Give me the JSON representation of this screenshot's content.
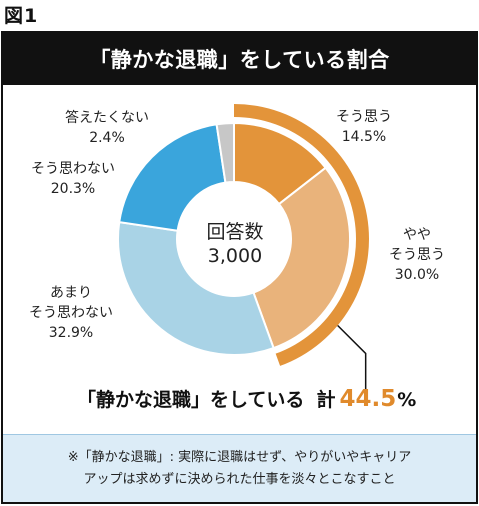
{
  "figure_label": "図1",
  "chart_data": {
    "type": "pie",
    "variant": "donut",
    "title": "「静かな退職」をしている割合",
    "center_label": {
      "caption": "回答数",
      "value": "3,000"
    },
    "categories": [
      "そう思う",
      "ややそう思う",
      "あまりそう思わない",
      "そう思わない",
      "答えたくない"
    ],
    "values": [
      14.5,
      30.0,
      32.9,
      20.3,
      2.4
    ],
    "unit": "%",
    "colors": [
      "#e3943a",
      "#e9b37b",
      "#a9d3e6",
      "#3aa5dc",
      "#c7c7c7"
    ],
    "highlight": {
      "categories": [
        "そう思う",
        "ややそう思う"
      ],
      "color": "#e3943a"
    },
    "labels": [
      {
        "lines": [
          "そう思う"
        ],
        "value": "14.5%"
      },
      {
        "lines": [
          "やや",
          "そう思う"
        ],
        "value": "30.0%"
      },
      {
        "lines": [
          "あまり",
          "そう思わない"
        ],
        "value": "32.9%"
      },
      {
        "lines": [
          "そう思わない"
        ],
        "value": "20.3%"
      },
      {
        "lines": [
          "答えたくない"
        ],
        "value": "2.4%"
      }
    ]
  },
  "summary": {
    "text": "「静かな退職」をしている",
    "total_label": "計",
    "value": "44.5",
    "unit": "%"
  },
  "footnote": {
    "line1": "※「静かな退職」: 実際に退職はせず、やりがいやキャリア",
    "line2": "アップは求めずに決められた仕事を淡々とこなすこと"
  }
}
